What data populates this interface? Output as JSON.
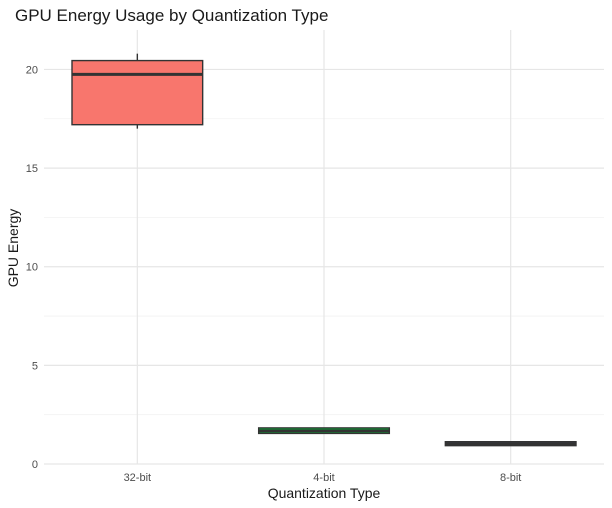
{
  "chart_data": {
    "type": "box",
    "title": "GPU Energy Usage by Quantization Type",
    "xlabel": "Quantization Type",
    "ylabel": "GPU Energy",
    "ylim": [
      0,
      22
    ],
    "yticks": [
      0,
      5,
      10,
      15,
      20
    ],
    "grid": true,
    "legend": "none",
    "categories": [
      "32-bit",
      "4-bit",
      "8-bit"
    ],
    "series": [
      {
        "category": "32-bit",
        "min": 17.0,
        "q1": 17.2,
        "median": 19.75,
        "q3": 20.45,
        "max": 20.8,
        "color": "#F8766D"
      },
      {
        "category": "4-bit",
        "min": 1.55,
        "q1": 1.55,
        "median": 1.68,
        "q3": 1.83,
        "max": 1.83,
        "color": "#00BA38"
      },
      {
        "category": "8-bit",
        "min": 0.93,
        "q1": 0.93,
        "median": 1.03,
        "q3": 1.13,
        "max": 1.13,
        "color": "#619CFF"
      }
    ]
  }
}
